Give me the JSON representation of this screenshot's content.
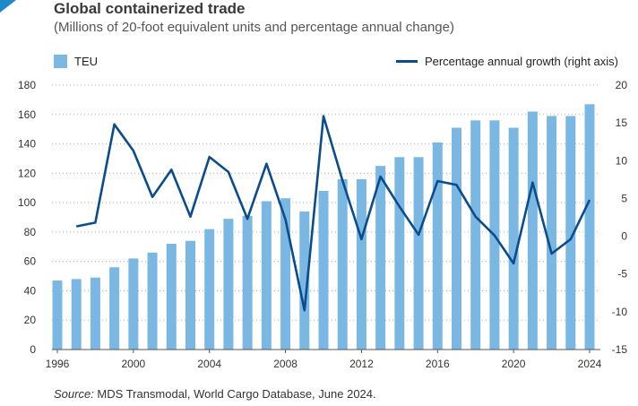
{
  "header": {
    "title": "Global containerized trade",
    "subtitle": "(Millions of 20-foot equivalent units and percentage annual change)"
  },
  "legend": {
    "bar_label": "TEU",
    "line_label": "Percentage annual growth (right axis)"
  },
  "source": {
    "label": "Source:",
    "text": " MDS Transmodal, World Cargo Database, June 2024."
  },
  "colors": {
    "bar": "#7ab8e3",
    "line": "#0b4c8c",
    "grid": "#b0b0b0",
    "corner_mark": "#1e88c9"
  },
  "chart_data": {
    "type": "bar",
    "x": [
      1996,
      1997,
      1998,
      1999,
      2000,
      2001,
      2002,
      2003,
      2004,
      2005,
      2006,
      2007,
      2008,
      2009,
      2010,
      2011,
      2012,
      2013,
      2014,
      2015,
      2016,
      2017,
      2018,
      2019,
      2020,
      2021,
      2022,
      2023,
      2024
    ],
    "x_tick_labels": [
      "1996",
      "2000",
      "2004",
      "2008",
      "2012",
      "2016",
      "2020",
      "2024"
    ],
    "series": [
      {
        "name": "TEU",
        "type": "bar",
        "axis": "left",
        "values": [
          47,
          48,
          49,
          56,
          62,
          66,
          72,
          74,
          82,
          89,
          91,
          101,
          103,
          94,
          108,
          116,
          116,
          125,
          131,
          131,
          141,
          151,
          156,
          156,
          151,
          162,
          159,
          159,
          167
        ]
      },
      {
        "name": "Percentage annual growth (right axis)",
        "type": "line",
        "axis": "right",
        "values": [
          null,
          1.3,
          1.8,
          14.8,
          11.3,
          5.2,
          8.8,
          2.6,
          10.5,
          8.5,
          2.3,
          9.6,
          2.2,
          -9.8,
          15.9,
          7.4,
          -0.4,
          7.9,
          3.9,
          0.2,
          7.3,
          6.8,
          2.6,
          0.1,
          -3.6,
          7.1,
          -2.3,
          -0.4,
          4.8
        ]
      }
    ],
    "ylim_left": [
      0,
      180
    ],
    "y_ticks_left": [
      0,
      20,
      40,
      60,
      80,
      100,
      120,
      140,
      160,
      180
    ],
    "ylim_right": [
      -15,
      20
    ],
    "y_ticks_right": [
      -15,
      -10,
      -5,
      0,
      5,
      10,
      15,
      20
    ],
    "grid": "horizontal dotted",
    "legend_position": "top"
  }
}
